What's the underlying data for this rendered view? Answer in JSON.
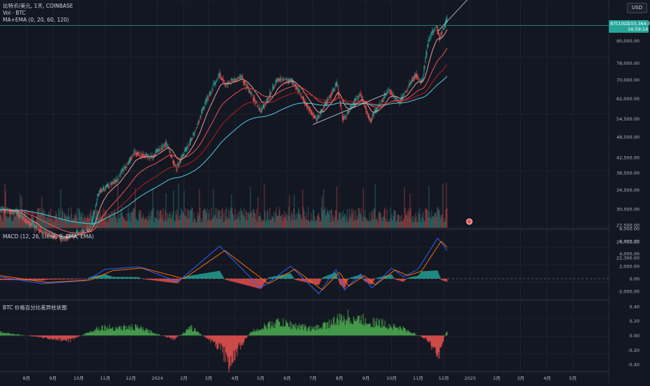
{
  "legend": {
    "title": "比特币/美元, 1天, COINBASE",
    "volume": "Vol · BTC",
    "ma": "MA+EMA (0, 20, 60, 120)",
    "macd": "MACD (12, 26, close, 9, EMA, EMA)",
    "osc": "BTC 价格百分比差异柱状图"
  },
  "currency": "USD",
  "last_price": {
    "symbol": "BTCUSD",
    "value": "103,364.57",
    "countdown": "16:59:14"
  },
  "colors": {
    "up": "#26a69a",
    "down": "#ef5350",
    "ma_fast": "#ef5350",
    "ma_slow": "#4dd0e1",
    "macd_line": "#2962ff",
    "signal_line": "#ff6d00",
    "osc_up": "#4caf50",
    "osc_down": "#ef5350",
    "trendline": "#d1d4dc"
  },
  "chart_data": [
    {
      "type": "candlestick",
      "title": "比特币/美元, 1天, COINBASE",
      "y_scale": "log",
      "y_ticks": [
        "96,000.00",
        "90,000.00",
        "78,000.00",
        "70,000.00",
        "62,000.00",
        "54,500.00",
        "48,500.00",
        "42,500.00",
        "38,500.00",
        "34,500.00",
        "30,500.00",
        "27,500.00",
        "24,700.00",
        "22,300.00"
      ],
      "x_ticks": [
        "8月",
        "9月",
        "10月",
        "11月",
        "12月",
        "2024",
        "2月",
        "3月",
        "4月",
        "5月",
        "6月",
        "7月",
        "8月",
        "9月",
        "10月",
        "11月",
        "12月",
        "2025",
        "2月",
        "3月",
        "4月",
        "5月"
      ],
      "series_close_keypoints": [
        {
          "x": "2023-07-01",
          "y": 30500
        },
        {
          "x": "2023-07-20",
          "y": 29800
        },
        {
          "x": "2023-08-17",
          "y": 26500
        },
        {
          "x": "2023-09-11",
          "y": 25200
        },
        {
          "x": "2023-10-15",
          "y": 26900
        },
        {
          "x": "2023-10-24",
          "y": 34000
        },
        {
          "x": "2023-11-15",
          "y": 36800
        },
        {
          "x": "2023-12-05",
          "y": 43800
        },
        {
          "x": "2023-12-25",
          "y": 42600
        },
        {
          "x": "2024-01-11",
          "y": 46500
        },
        {
          "x": "2024-01-23",
          "y": 39700
        },
        {
          "x": "2024-02-10",
          "y": 47700
        },
        {
          "x": "2024-02-28",
          "y": 62000
        },
        {
          "x": "2024-03-14",
          "y": 72700
        },
        {
          "x": "2024-03-20",
          "y": 67800
        },
        {
          "x": "2024-04-08",
          "y": 71600
        },
        {
          "x": "2024-05-01",
          "y": 57000
        },
        {
          "x": "2024-05-21",
          "y": 70200
        },
        {
          "x": "2024-06-07",
          "y": 69300
        },
        {
          "x": "2024-07-05",
          "y": 54000
        },
        {
          "x": "2024-07-29",
          "y": 68300
        },
        {
          "x": "2024-08-05",
          "y": 54000
        },
        {
          "x": "2024-08-25",
          "y": 64200
        },
        {
          "x": "2024-09-06",
          "y": 53900
        },
        {
          "x": "2024-09-27",
          "y": 65800
        },
        {
          "x": "2024-10-10",
          "y": 60500
        },
        {
          "x": "2024-10-29",
          "y": 72700
        },
        {
          "x": "2024-11-05",
          "y": 68000
        },
        {
          "x": "2024-11-13",
          "y": 90000
        },
        {
          "x": "2024-11-22",
          "y": 98900
        },
        {
          "x": "2024-11-26",
          "y": 91900
        },
        {
          "x": "2024-12-05",
          "y": 103364.57
        }
      ]
    },
    {
      "type": "bar",
      "title": "MACD (12, 26, close, 9, EMA, EMA)",
      "y_ticks": [
        "8,000.00",
        "6,000.00",
        "4,000.00",
        "2,000.00",
        "0.00",
        "-2,000.00"
      ],
      "macd_line_keypoints": [
        {
          "x": "2023-07-01",
          "y": 300
        },
        {
          "x": "2023-08-20",
          "y": -800
        },
        {
          "x": "2023-10-10",
          "y": -300
        },
        {
          "x": "2023-11-01",
          "y": 1500
        },
        {
          "x": "2023-12-10",
          "y": 1900
        },
        {
          "x": "2024-01-25",
          "y": -500
        },
        {
          "x": "2024-03-14",
          "y": 5200
        },
        {
          "x": "2024-05-01",
          "y": -1500
        },
        {
          "x": "2024-06-05",
          "y": 2000
        },
        {
          "x": "2024-07-08",
          "y": -2400
        },
        {
          "x": "2024-07-28",
          "y": 1500
        },
        {
          "x": "2024-08-07",
          "y": -1800
        },
        {
          "x": "2024-08-26",
          "y": 800
        },
        {
          "x": "2024-09-08",
          "y": -1500
        },
        {
          "x": "2024-10-01",
          "y": 1700
        },
        {
          "x": "2024-10-15",
          "y": 300
        },
        {
          "x": "2024-11-01",
          "y": 1500
        },
        {
          "x": "2024-11-24",
          "y": 6500
        },
        {
          "x": "2024-12-05",
          "y": 4500
        }
      ],
      "signal_line_keypoints": [
        {
          "x": "2023-07-01",
          "y": 500
        },
        {
          "x": "2023-08-25",
          "y": -600
        },
        {
          "x": "2023-10-15",
          "y": -200
        },
        {
          "x": "2023-11-10",
          "y": 1300
        },
        {
          "x": "2023-12-15",
          "y": 1700
        },
        {
          "x": "2024-02-01",
          "y": 0
        },
        {
          "x": "2024-03-20",
          "y": 4500
        },
        {
          "x": "2024-05-10",
          "y": -800
        },
        {
          "x": "2024-06-10",
          "y": 1500
        },
        {
          "x": "2024-07-12",
          "y": -1800
        },
        {
          "x": "2024-08-01",
          "y": 1000
        },
        {
          "x": "2024-08-12",
          "y": -1200
        },
        {
          "x": "2024-08-30",
          "y": 500
        },
        {
          "x": "2024-09-12",
          "y": -1000
        },
        {
          "x": "2024-10-05",
          "y": 1400
        },
        {
          "x": "2024-10-20",
          "y": 500
        },
        {
          "x": "2024-11-05",
          "y": 1200
        },
        {
          "x": "2024-11-28",
          "y": 6000
        },
        {
          "x": "2024-12-05",
          "y": 5000
        }
      ]
    },
    {
      "type": "bar",
      "title": "BTC 价格百分比差异柱状图",
      "y_ticks": [
        "0.40",
        "0.20",
        "0.00",
        "-0.20",
        "-0.40"
      ],
      "keypoints": [
        {
          "x": "2023-07-01",
          "y": 0.05
        },
        {
          "x": "2023-09-20",
          "y": -0.08
        },
        {
          "x": "2023-10-25",
          "y": 0.12
        },
        {
          "x": "2023-12-10",
          "y": 0.12
        },
        {
          "x": "2024-01-20",
          "y": -0.06
        },
        {
          "x": "2024-02-10",
          "y": 0.12
        },
        {
          "x": "2024-03-14",
          "y": -0.18
        },
        {
          "x": "2024-03-25",
          "y": -0.4
        },
        {
          "x": "2024-04-20",
          "y": 0.06
        },
        {
          "x": "2024-05-20",
          "y": 0.2
        },
        {
          "x": "2024-07-01",
          "y": 0.1
        },
        {
          "x": "2024-08-10",
          "y": 0.28
        },
        {
          "x": "2024-09-20",
          "y": 0.18
        },
        {
          "x": "2024-10-15",
          "y": 0.1
        },
        {
          "x": "2024-11-10",
          "y": -0.05
        },
        {
          "x": "2024-11-25",
          "y": -0.3
        },
        {
          "x": "2024-12-05",
          "y": 0.1
        }
      ]
    }
  ]
}
